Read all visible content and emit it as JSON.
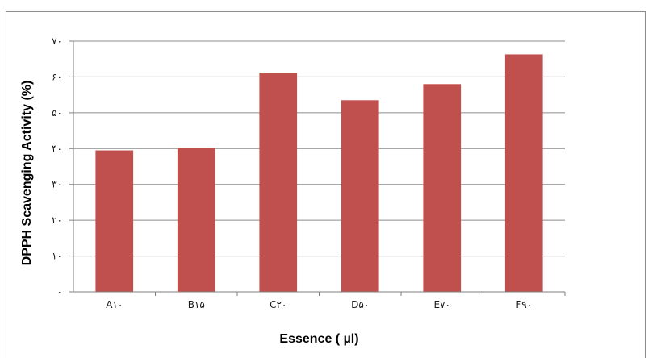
{
  "chart_data": {
    "type": "bar",
    "title": "",
    "xlabel": "Essence ( µl)",
    "ylabel": "DPPH Scavenging Activity (%)",
    "categories": [
      "A١٠",
      "B١۵",
      "C٢٠",
      "D۵٠",
      "E٧٠",
      "F٩٠"
    ],
    "values": [
      39.5,
      40.2,
      61.2,
      53.5,
      58.0,
      66.3
    ],
    "ylim": [
      0,
      70
    ],
    "yticks": [
      0,
      10,
      20,
      30,
      40,
      50,
      60,
      70
    ],
    "ytick_labels": [
      "٠",
      "١٠",
      "٢٠",
      "٣٠",
      "۴٠",
      "۵٠",
      "۶٠",
      "٧٠"
    ],
    "grid": true,
    "legend": "none",
    "colors": {
      "bar": "#c0504d",
      "grid": "#8c8c8c",
      "axis": "#7f7f7f"
    }
  }
}
